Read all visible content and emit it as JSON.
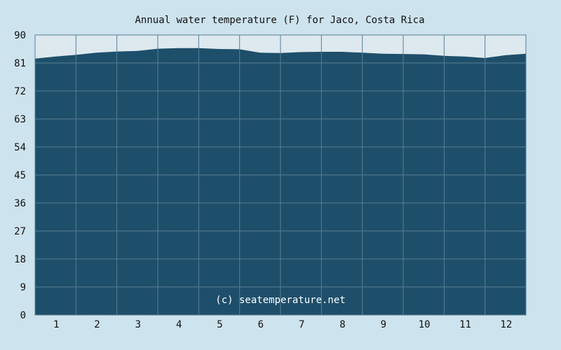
{
  "chart_data": {
    "type": "area",
    "title": "Annual water temperature (F) for Jaco, Costa Rica",
    "xlabel": "",
    "ylabel": "",
    "x_ticks": [
      "1",
      "2",
      "3",
      "4",
      "5",
      "6",
      "7",
      "8",
      "9",
      "10",
      "11",
      "12"
    ],
    "y_ticks": [
      "0",
      "9",
      "18",
      "27",
      "36",
      "45",
      "54",
      "63",
      "72",
      "81",
      "90"
    ],
    "ylim": [
      0,
      90
    ],
    "xlim": [
      0.5,
      12.5
    ],
    "grid": true,
    "watermark": "(c) seatemperature.net",
    "x": [
      0.5,
      1.0,
      1.5,
      2.0,
      2.5,
      3.0,
      3.5,
      4.0,
      4.5,
      5.0,
      5.5,
      6.0,
      6.5,
      7.0,
      7.5,
      8.0,
      8.5,
      9.0,
      9.5,
      10.0,
      10.5,
      11.0,
      11.5,
      12.0,
      12.5
    ],
    "values": [
      82.4,
      83.1,
      83.6,
      84.3,
      84.7,
      84.9,
      85.6,
      85.8,
      85.8,
      85.5,
      85.4,
      84.3,
      84.2,
      84.5,
      84.6,
      84.6,
      84.3,
      84.0,
      83.9,
      83.8,
      83.3,
      83.1,
      82.6,
      83.5,
      84.0
    ],
    "colors": {
      "background": "#cde3ee",
      "plot_bg": "#dde9ef",
      "area": "#1e4f6a",
      "grid": "#557f97",
      "text": "#111111"
    }
  }
}
